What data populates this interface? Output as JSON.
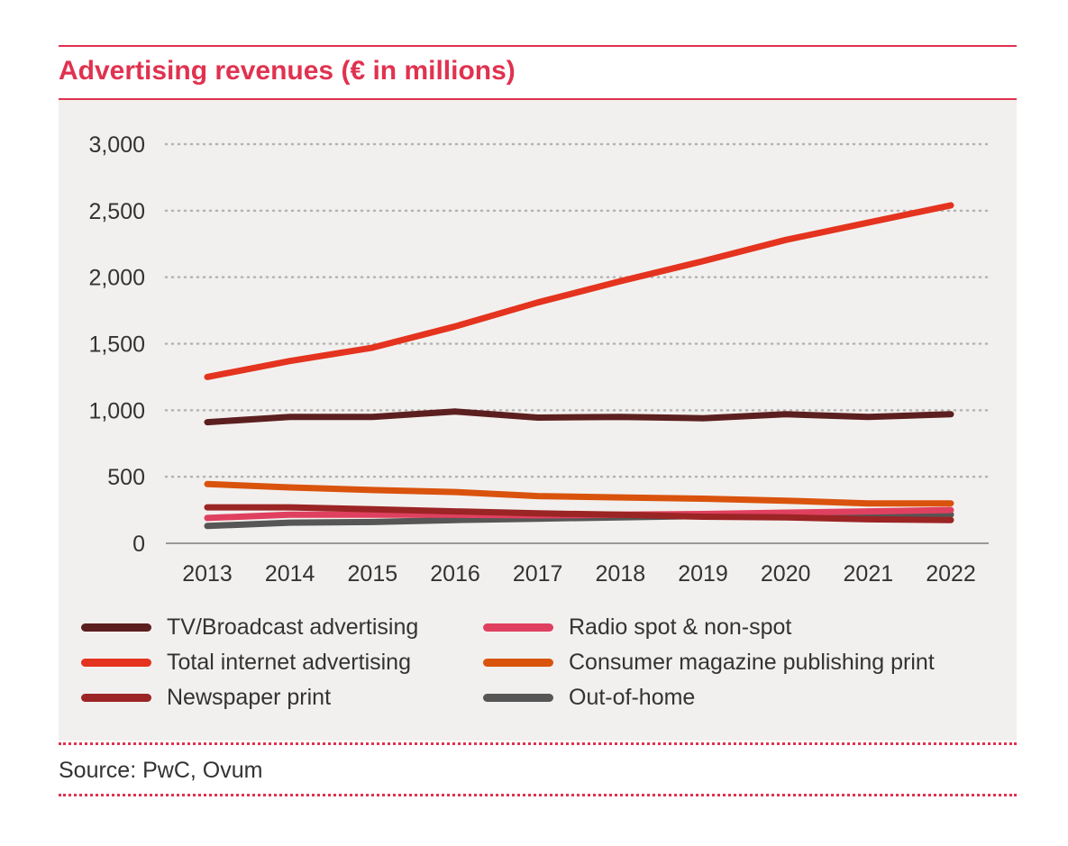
{
  "title": "Advertising revenues (€ in millions)",
  "source": "Source: PwC, Ovum",
  "chart_data": {
    "type": "line",
    "title": "Advertising revenues (€ in millions)",
    "xlabel": "",
    "ylabel": "",
    "x": [
      "2013",
      "2014",
      "2015",
      "2016",
      "2017",
      "2018",
      "2019",
      "2020",
      "2021",
      "2022"
    ],
    "ylim": [
      0,
      3000
    ],
    "yticks": [
      0,
      500,
      1000,
      1500,
      2000,
      2500,
      3000
    ],
    "ytick_labels": [
      "0",
      "500",
      "1,000",
      "1,500",
      "2,000",
      "2,500",
      "3,000"
    ],
    "grid": "horizontal dotted",
    "legend_position": "bottom",
    "series": [
      {
        "name": "TV/Broadcast advertising",
        "color": "#5c1f1f",
        "values": [
          910,
          950,
          950,
          990,
          945,
          950,
          940,
          970,
          950,
          970
        ]
      },
      {
        "name": "Total internet advertising",
        "color": "#e4331e",
        "values": [
          1250,
          1370,
          1470,
          1630,
          1810,
          1970,
          2120,
          2280,
          2410,
          2540
        ]
      },
      {
        "name": "Newspaper print",
        "color": "#9b2424",
        "values": [
          270,
          270,
          255,
          240,
          225,
          215,
          200,
          195,
          180,
          175
        ]
      },
      {
        "name": "Radio spot & non-spot",
        "color": "#e0405f",
        "values": [
          190,
          215,
          215,
          215,
          210,
          215,
          220,
          230,
          240,
          250
        ]
      },
      {
        "name": "Consumer magazine publishing print",
        "color": "#d9530d",
        "values": [
          445,
          420,
          400,
          385,
          355,
          345,
          335,
          320,
          300,
          300
        ]
      },
      {
        "name": "Out-of-home",
        "color": "#565656",
        "values": [
          130,
          155,
          160,
          175,
          185,
          195,
          205,
          210,
          210,
          215
        ]
      }
    ]
  }
}
